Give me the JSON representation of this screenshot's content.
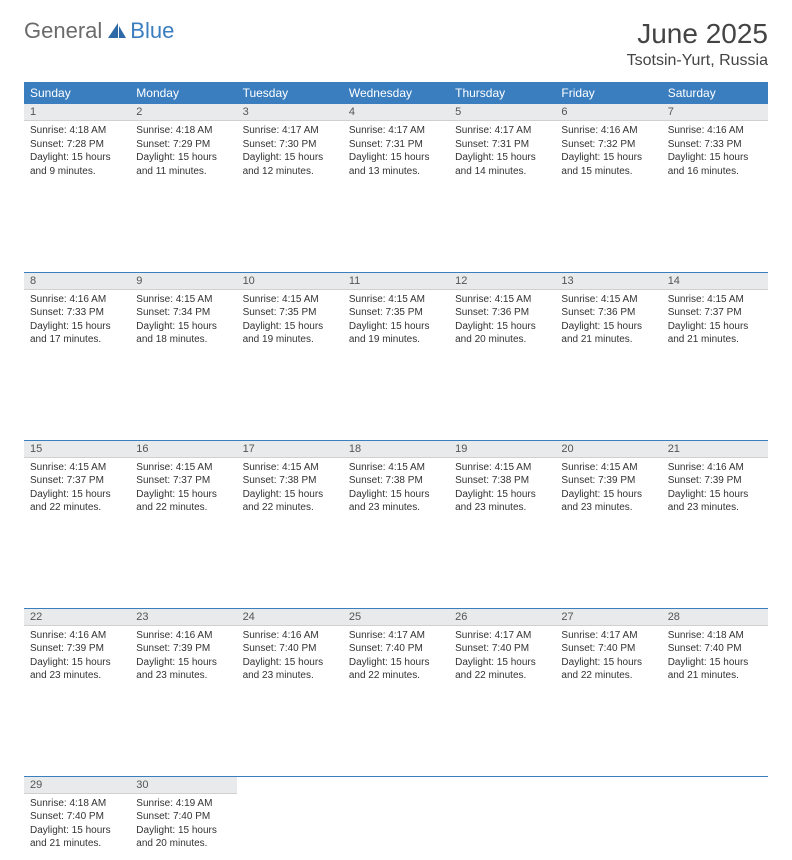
{
  "logo": {
    "general": "General",
    "blue": "Blue"
  },
  "title": {
    "month": "June 2025",
    "location": "Tsotsin-Yurt, Russia"
  },
  "colors": {
    "header_bg": "#3a7ebf",
    "header_text": "#ffffff",
    "daynum_bg": "#e8eaec",
    "row_divider": "#3a7ebf",
    "logo_gray": "#6b6b6b",
    "logo_blue": "#3a7ebf"
  },
  "weekdays": [
    "Sunday",
    "Monday",
    "Tuesday",
    "Wednesday",
    "Thursday",
    "Friday",
    "Saturday"
  ],
  "weeks": [
    [
      {
        "n": "1",
        "sr": "Sunrise: 4:18 AM",
        "ss": "Sunset: 7:28 PM",
        "dl1": "Daylight: 15 hours",
        "dl2": "and 9 minutes."
      },
      {
        "n": "2",
        "sr": "Sunrise: 4:18 AM",
        "ss": "Sunset: 7:29 PM",
        "dl1": "Daylight: 15 hours",
        "dl2": "and 11 minutes."
      },
      {
        "n": "3",
        "sr": "Sunrise: 4:17 AM",
        "ss": "Sunset: 7:30 PM",
        "dl1": "Daylight: 15 hours",
        "dl2": "and 12 minutes."
      },
      {
        "n": "4",
        "sr": "Sunrise: 4:17 AM",
        "ss": "Sunset: 7:31 PM",
        "dl1": "Daylight: 15 hours",
        "dl2": "and 13 minutes."
      },
      {
        "n": "5",
        "sr": "Sunrise: 4:17 AM",
        "ss": "Sunset: 7:31 PM",
        "dl1": "Daylight: 15 hours",
        "dl2": "and 14 minutes."
      },
      {
        "n": "6",
        "sr": "Sunrise: 4:16 AM",
        "ss": "Sunset: 7:32 PM",
        "dl1": "Daylight: 15 hours",
        "dl2": "and 15 minutes."
      },
      {
        "n": "7",
        "sr": "Sunrise: 4:16 AM",
        "ss": "Sunset: 7:33 PM",
        "dl1": "Daylight: 15 hours",
        "dl2": "and 16 minutes."
      }
    ],
    [
      {
        "n": "8",
        "sr": "Sunrise: 4:16 AM",
        "ss": "Sunset: 7:33 PM",
        "dl1": "Daylight: 15 hours",
        "dl2": "and 17 minutes."
      },
      {
        "n": "9",
        "sr": "Sunrise: 4:15 AM",
        "ss": "Sunset: 7:34 PM",
        "dl1": "Daylight: 15 hours",
        "dl2": "and 18 minutes."
      },
      {
        "n": "10",
        "sr": "Sunrise: 4:15 AM",
        "ss": "Sunset: 7:35 PM",
        "dl1": "Daylight: 15 hours",
        "dl2": "and 19 minutes."
      },
      {
        "n": "11",
        "sr": "Sunrise: 4:15 AM",
        "ss": "Sunset: 7:35 PM",
        "dl1": "Daylight: 15 hours",
        "dl2": "and 19 minutes."
      },
      {
        "n": "12",
        "sr": "Sunrise: 4:15 AM",
        "ss": "Sunset: 7:36 PM",
        "dl1": "Daylight: 15 hours",
        "dl2": "and 20 minutes."
      },
      {
        "n": "13",
        "sr": "Sunrise: 4:15 AM",
        "ss": "Sunset: 7:36 PM",
        "dl1": "Daylight: 15 hours",
        "dl2": "and 21 minutes."
      },
      {
        "n": "14",
        "sr": "Sunrise: 4:15 AM",
        "ss": "Sunset: 7:37 PM",
        "dl1": "Daylight: 15 hours",
        "dl2": "and 21 minutes."
      }
    ],
    [
      {
        "n": "15",
        "sr": "Sunrise: 4:15 AM",
        "ss": "Sunset: 7:37 PM",
        "dl1": "Daylight: 15 hours",
        "dl2": "and 22 minutes."
      },
      {
        "n": "16",
        "sr": "Sunrise: 4:15 AM",
        "ss": "Sunset: 7:37 PM",
        "dl1": "Daylight: 15 hours",
        "dl2": "and 22 minutes."
      },
      {
        "n": "17",
        "sr": "Sunrise: 4:15 AM",
        "ss": "Sunset: 7:38 PM",
        "dl1": "Daylight: 15 hours",
        "dl2": "and 22 minutes."
      },
      {
        "n": "18",
        "sr": "Sunrise: 4:15 AM",
        "ss": "Sunset: 7:38 PM",
        "dl1": "Daylight: 15 hours",
        "dl2": "and 23 minutes."
      },
      {
        "n": "19",
        "sr": "Sunrise: 4:15 AM",
        "ss": "Sunset: 7:38 PM",
        "dl1": "Daylight: 15 hours",
        "dl2": "and 23 minutes."
      },
      {
        "n": "20",
        "sr": "Sunrise: 4:15 AM",
        "ss": "Sunset: 7:39 PM",
        "dl1": "Daylight: 15 hours",
        "dl2": "and 23 minutes."
      },
      {
        "n": "21",
        "sr": "Sunrise: 4:16 AM",
        "ss": "Sunset: 7:39 PM",
        "dl1": "Daylight: 15 hours",
        "dl2": "and 23 minutes."
      }
    ],
    [
      {
        "n": "22",
        "sr": "Sunrise: 4:16 AM",
        "ss": "Sunset: 7:39 PM",
        "dl1": "Daylight: 15 hours",
        "dl2": "and 23 minutes."
      },
      {
        "n": "23",
        "sr": "Sunrise: 4:16 AM",
        "ss": "Sunset: 7:39 PM",
        "dl1": "Daylight: 15 hours",
        "dl2": "and 23 minutes."
      },
      {
        "n": "24",
        "sr": "Sunrise: 4:16 AM",
        "ss": "Sunset: 7:40 PM",
        "dl1": "Daylight: 15 hours",
        "dl2": "and 23 minutes."
      },
      {
        "n": "25",
        "sr": "Sunrise: 4:17 AM",
        "ss": "Sunset: 7:40 PM",
        "dl1": "Daylight: 15 hours",
        "dl2": "and 22 minutes."
      },
      {
        "n": "26",
        "sr": "Sunrise: 4:17 AM",
        "ss": "Sunset: 7:40 PM",
        "dl1": "Daylight: 15 hours",
        "dl2": "and 22 minutes."
      },
      {
        "n": "27",
        "sr": "Sunrise: 4:17 AM",
        "ss": "Sunset: 7:40 PM",
        "dl1": "Daylight: 15 hours",
        "dl2": "and 22 minutes."
      },
      {
        "n": "28",
        "sr": "Sunrise: 4:18 AM",
        "ss": "Sunset: 7:40 PM",
        "dl1": "Daylight: 15 hours",
        "dl2": "and 21 minutes."
      }
    ],
    [
      {
        "n": "29",
        "sr": "Sunrise: 4:18 AM",
        "ss": "Sunset: 7:40 PM",
        "dl1": "Daylight: 15 hours",
        "dl2": "and 21 minutes."
      },
      {
        "n": "30",
        "sr": "Sunrise: 4:19 AM",
        "ss": "Sunset: 7:40 PM",
        "dl1": "Daylight: 15 hours",
        "dl2": "and 20 minutes."
      },
      null,
      null,
      null,
      null,
      null
    ]
  ]
}
